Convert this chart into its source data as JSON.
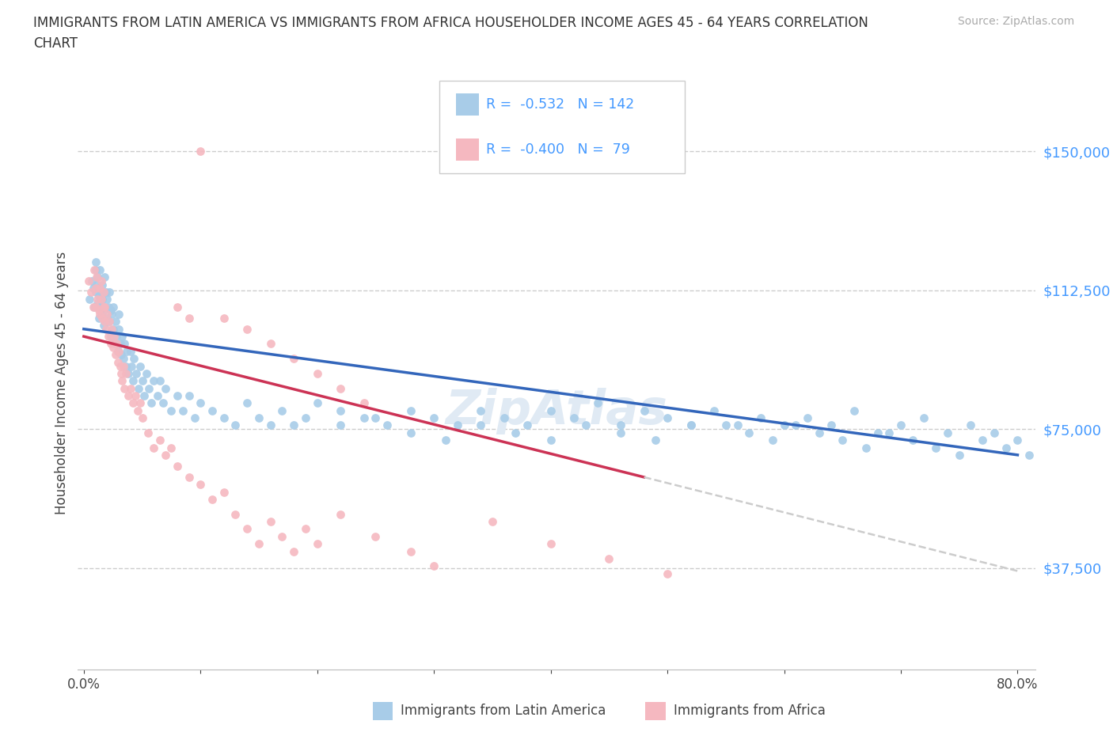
{
  "title_line1": "IMMIGRANTS FROM LATIN AMERICA VS IMMIGRANTS FROM AFRICA HOUSEHOLDER INCOME AGES 45 - 64 YEARS CORRELATION",
  "title_line2": "CHART",
  "source": "Source: ZipAtlas.com",
  "ylabel": "Householder Income Ages 45 - 64 years",
  "ytick_labels": [
    "$37,500",
    "$75,000",
    "$112,500",
    "$150,000"
  ],
  "ytick_values": [
    37500,
    75000,
    112500,
    150000
  ],
  "ymin": 10000,
  "ymax": 165000,
  "xmin": -0.005,
  "xmax": 0.815,
  "color_latin": "#a8cce8",
  "color_africa": "#f5b8c0",
  "trendline_latin_color": "#3366bb",
  "trendline_africa_color": "#cc3355",
  "trendline_dashed_color": "#cccccc",
  "legend_text_color": "#4499ff",
  "watermark_color": "#e0eaf4",
  "background_color": "#ffffff",
  "latin_x": [
    0.005,
    0.007,
    0.008,
    0.009,
    0.01,
    0.01,
    0.01,
    0.011,
    0.012,
    0.012,
    0.013,
    0.013,
    0.014,
    0.014,
    0.015,
    0.015,
    0.016,
    0.016,
    0.017,
    0.017,
    0.018,
    0.018,
    0.019,
    0.02,
    0.02,
    0.021,
    0.022,
    0.022,
    0.023,
    0.023,
    0.024,
    0.025,
    0.025,
    0.026,
    0.027,
    0.028,
    0.029,
    0.03,
    0.03,
    0.031,
    0.032,
    0.033,
    0.034,
    0.035,
    0.036,
    0.037,
    0.038,
    0.04,
    0.041,
    0.042,
    0.043,
    0.045,
    0.047,
    0.048,
    0.05,
    0.052,
    0.054,
    0.056,
    0.058,
    0.06,
    0.063,
    0.065,
    0.068,
    0.07,
    0.075,
    0.08,
    0.085,
    0.09,
    0.095,
    0.1,
    0.11,
    0.12,
    0.13,
    0.14,
    0.15,
    0.16,
    0.17,
    0.18,
    0.19,
    0.2,
    0.22,
    0.24,
    0.26,
    0.28,
    0.3,
    0.32,
    0.34,
    0.36,
    0.38,
    0.4,
    0.42,
    0.44,
    0.46,
    0.48,
    0.5,
    0.52,
    0.54,
    0.56,
    0.58,
    0.6,
    0.62,
    0.64,
    0.66,
    0.68,
    0.7,
    0.72,
    0.74,
    0.76,
    0.78,
    0.8,
    0.55,
    0.57,
    0.59,
    0.61,
    0.63,
    0.65,
    0.67,
    0.69,
    0.71,
    0.73,
    0.75,
    0.77,
    0.79,
    0.81,
    0.22,
    0.25,
    0.28,
    0.31,
    0.34,
    0.37,
    0.4,
    0.43,
    0.46,
    0.49,
    0.52
  ],
  "latin_y": [
    110000,
    115000,
    113000,
    108000,
    120000,
    112000,
    118000,
    114000,
    109000,
    116000,
    111000,
    105000,
    108000,
    118000,
    112000,
    106000,
    114000,
    110000,
    107000,
    103000,
    116000,
    108000,
    112000,
    105000,
    110000,
    108000,
    104000,
    112000,
    107000,
    100000,
    106000,
    102000,
    108000,
    98000,
    104000,
    100000,
    96000,
    102000,
    106000,
    98000,
    95000,
    100000,
    94000,
    98000,
    92000,
    96000,
    90000,
    96000,
    92000,
    88000,
    94000,
    90000,
    86000,
    92000,
    88000,
    84000,
    90000,
    86000,
    82000,
    88000,
    84000,
    88000,
    82000,
    86000,
    80000,
    84000,
    80000,
    84000,
    78000,
    82000,
    80000,
    78000,
    76000,
    82000,
    78000,
    76000,
    80000,
    76000,
    78000,
    82000,
    80000,
    78000,
    76000,
    80000,
    78000,
    76000,
    80000,
    78000,
    76000,
    80000,
    78000,
    82000,
    76000,
    80000,
    78000,
    76000,
    80000,
    76000,
    78000,
    76000,
    78000,
    76000,
    80000,
    74000,
    76000,
    78000,
    74000,
    76000,
    74000,
    72000,
    76000,
    74000,
    72000,
    76000,
    74000,
    72000,
    70000,
    74000,
    72000,
    70000,
    68000,
    72000,
    70000,
    68000,
    76000,
    78000,
    74000,
    72000,
    76000,
    74000,
    72000,
    76000,
    74000,
    72000,
    76000
  ],
  "africa_x": [
    0.004,
    0.006,
    0.008,
    0.009,
    0.01,
    0.01,
    0.011,
    0.012,
    0.013,
    0.014,
    0.014,
    0.015,
    0.015,
    0.016,
    0.017,
    0.017,
    0.018,
    0.018,
    0.019,
    0.02,
    0.021,
    0.022,
    0.023,
    0.024,
    0.025,
    0.026,
    0.027,
    0.028,
    0.029,
    0.03,
    0.031,
    0.032,
    0.033,
    0.034,
    0.035,
    0.036,
    0.038,
    0.04,
    0.042,
    0.044,
    0.046,
    0.048,
    0.05,
    0.055,
    0.06,
    0.065,
    0.07,
    0.075,
    0.08,
    0.09,
    0.1,
    0.11,
    0.12,
    0.13,
    0.14,
    0.15,
    0.16,
    0.17,
    0.18,
    0.19,
    0.2,
    0.22,
    0.25,
    0.28,
    0.3,
    0.35,
    0.4,
    0.45,
    0.5,
    0.08,
    0.09,
    0.1,
    0.12,
    0.14,
    0.16,
    0.18,
    0.2,
    0.22,
    0.24
  ],
  "africa_y": [
    115000,
    112000,
    108000,
    118000,
    113000,
    108000,
    116000,
    110000,
    107000,
    113000,
    106000,
    110000,
    115000,
    105000,
    108000,
    112000,
    104000,
    108000,
    102000,
    106000,
    100000,
    104000,
    98000,
    102000,
    97000,
    100000,
    95000,
    98000,
    93000,
    96000,
    92000,
    90000,
    88000,
    92000,
    86000,
    90000,
    84000,
    86000,
    82000,
    84000,
    80000,
    82000,
    78000,
    74000,
    70000,
    72000,
    68000,
    70000,
    65000,
    62000,
    60000,
    56000,
    58000,
    52000,
    48000,
    44000,
    50000,
    46000,
    42000,
    48000,
    44000,
    52000,
    46000,
    42000,
    38000,
    50000,
    44000,
    40000,
    36000,
    108000,
    105000,
    150000,
    105000,
    102000,
    98000,
    94000,
    90000,
    86000,
    82000
  ]
}
